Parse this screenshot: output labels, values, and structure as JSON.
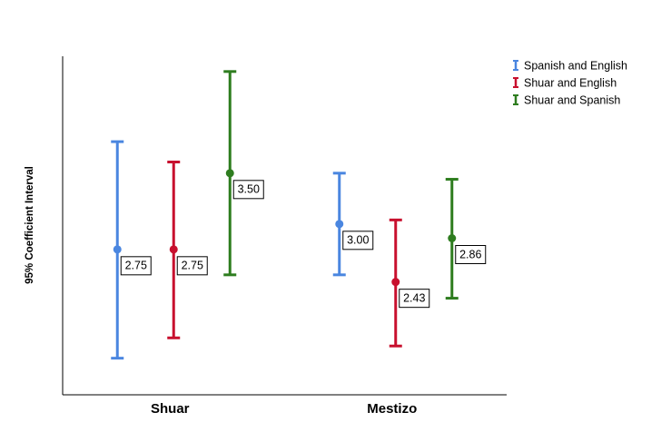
{
  "chart_data": {
    "type": "errorbar",
    "y_label": "95% Coefficient Interval",
    "categories": [
      "Shuar",
      "Mestizo"
    ],
    "ylim": [
      1.32,
      4.65
    ],
    "legend": "top-right",
    "series": [
      {
        "name": "Spanish and English",
        "color": "#4a86e0",
        "values": [
          2.75,
          3.0
        ],
        "value_labels": [
          "2.75",
          "3.00"
        ],
        "low": [
          1.68,
          2.5
        ],
        "high": [
          3.81,
          3.5
        ]
      },
      {
        "name": "Shuar and English",
        "color": "#c8102e",
        "values": [
          2.75,
          2.43
        ],
        "value_labels": [
          "2.75",
          "2.43"
        ],
        "low": [
          1.88,
          1.8
        ],
        "high": [
          3.61,
          3.04
        ]
      },
      {
        "name": "Shuar and Spanish",
        "color": "#2e7d1f",
        "values": [
          3.5,
          2.86
        ],
        "value_labels": [
          "3.50",
          "2.86"
        ],
        "low": [
          2.5,
          2.27
        ],
        "high": [
          4.5,
          3.44
        ]
      }
    ]
  }
}
